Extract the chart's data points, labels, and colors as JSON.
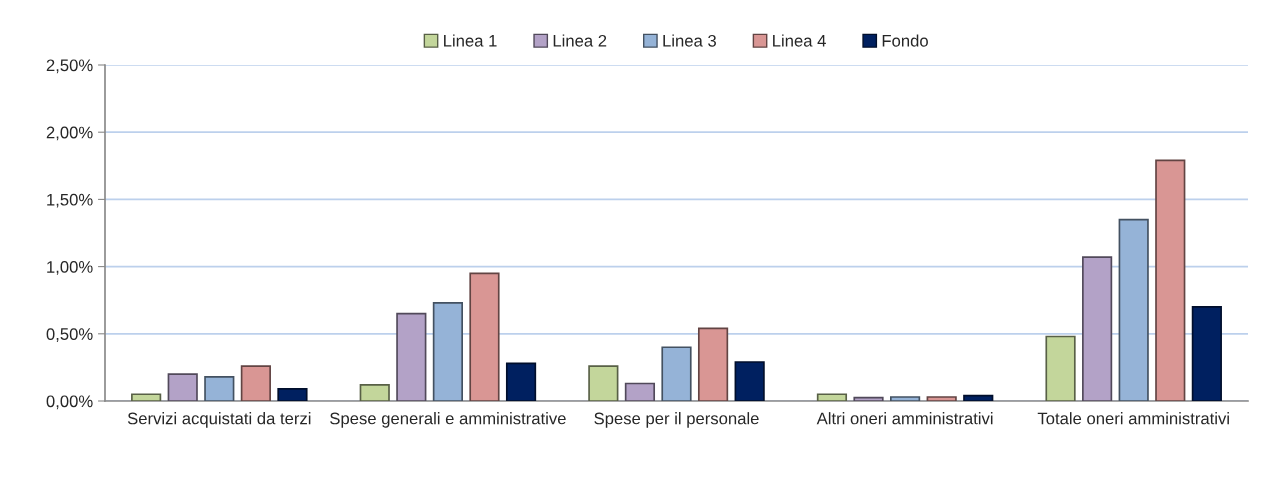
{
  "chart_data": {
    "type": "bar",
    "categories": [
      "Servizi acquistati da terzi",
      "Spese generali e amministrative",
      "Spese per il personale",
      "Altri oneri amministrativi",
      "Totale oneri amministrativi"
    ],
    "series": [
      {
        "name": "Linea 1",
        "color": "#c3d69b",
        "values": [
          0.05,
          0.12,
          0.26,
          0.05,
          0.48
        ]
      },
      {
        "name": "Linea 2",
        "color": "#b3a2c7",
        "values": [
          0.2,
          0.65,
          0.13,
          0.025,
          1.07
        ]
      },
      {
        "name": "Linea 3",
        "color": "#95b3d7",
        "values": [
          0.18,
          0.73,
          0.4,
          0.03,
          1.35
        ]
      },
      {
        "name": "Linea 4",
        "color": "#d99694",
        "values": [
          0.26,
          0.95,
          0.54,
          0.03,
          1.79
        ]
      },
      {
        "name": "Fondo",
        "color": "#002060",
        "values": [
          0.09,
          0.28,
          0.29,
          0.04,
          0.7
        ]
      }
    ],
    "ylim": [
      0,
      2.5
    ],
    "yticks": [
      {
        "value": 0,
        "label": "0,00%"
      },
      {
        "value": 0.5,
        "label": "0,50%"
      },
      {
        "value": 1,
        "label": "1,00%"
      },
      {
        "value": 1.5,
        "label": "1,50%"
      },
      {
        "value": 2,
        "label": "2,00%"
      },
      {
        "value": 2.5,
        "label": "2,50%"
      }
    ],
    "grid": "y",
    "legend": "top"
  }
}
